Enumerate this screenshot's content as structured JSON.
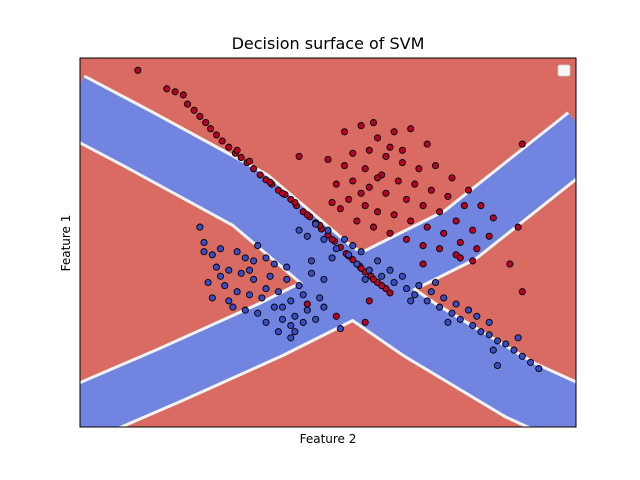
{
  "chart_data": {
    "type": "scatter",
    "title": "Decision surface of SVM",
    "xlabel": "Feature 2",
    "ylabel": "Feature 1",
    "xlim": [
      -3.0,
      3.0
    ],
    "ylim": [
      -3.0,
      3.0
    ],
    "xticks": [],
    "yticks": [],
    "grid": false,
    "legend": {
      "location": "top-right",
      "entries": []
    },
    "decision_regions": [
      {
        "class": 0,
        "color": "#7084e0",
        "shape": "X-shaped band along both diagonals"
      },
      {
        "class": 1,
        "color": "#d96b63",
        "shape": "remaining background (top, bottom, left, right wedges)"
      }
    ],
    "series": [
      {
        "class": 1,
        "color": "#b40426",
        "points": [
          [
            -2.3,
            2.8
          ],
          [
            -1.95,
            2.5
          ],
          [
            -1.85,
            2.45
          ],
          [
            -1.75,
            2.4
          ],
          [
            -1.7,
            2.25
          ],
          [
            -1.62,
            2.15
          ],
          [
            -1.55,
            2.05
          ],
          [
            -1.48,
            1.95
          ],
          [
            -1.42,
            1.85
          ],
          [
            -1.35,
            1.75
          ],
          [
            -1.28,
            1.65
          ],
          [
            -1.2,
            1.55
          ],
          [
            -1.12,
            1.45
          ],
          [
            -1.05,
            1.38
          ],
          [
            -0.98,
            1.3
          ],
          [
            -0.9,
            1.2
          ],
          [
            -0.82,
            1.1
          ],
          [
            -0.75,
            1.02
          ],
          [
            -0.68,
            0.95
          ],
          [
            -0.6,
            0.85
          ],
          [
            -0.52,
            0.78
          ],
          [
            -0.45,
            0.7
          ],
          [
            -0.38,
            0.6
          ],
          [
            -0.3,
            0.5
          ],
          [
            -0.22,
            0.42
          ],
          [
            -0.15,
            0.32
          ],
          [
            -0.08,
            0.22
          ],
          [
            0.0,
            0.12
          ],
          [
            0.08,
            0.02
          ],
          [
            0.15,
            -0.08
          ],
          [
            0.22,
            -0.18
          ],
          [
            0.3,
            -0.28
          ],
          [
            0.38,
            -0.38
          ],
          [
            0.45,
            -0.48
          ],
          [
            0.52,
            -0.55
          ],
          [
            0.6,
            -0.65
          ],
          [
            0.7,
            -0.75
          ],
          [
            -1.1,
            1.5
          ],
          [
            -0.95,
            1.32
          ],
          [
            -0.7,
            0.98
          ],
          [
            -0.55,
            0.8
          ],
          [
            -0.4,
            0.65
          ],
          [
            -0.25,
            0.45
          ],
          [
            -0.1,
            0.28
          ],
          [
            0.05,
            0.05
          ],
          [
            0.25,
            -0.22
          ],
          [
            0.4,
            -0.42
          ],
          [
            0.55,
            -0.6
          ],
          [
            0.65,
            -0.7
          ],
          [
            0.75,
            -0.82
          ],
          [
            0.2,
            1.8
          ],
          [
            0.4,
            1.9
          ],
          [
            0.6,
            1.7
          ],
          [
            0.8,
            1.8
          ],
          [
            1.0,
            1.85
          ],
          [
            0.3,
            1.45
          ],
          [
            0.5,
            1.5
          ],
          [
            0.7,
            1.4
          ],
          [
            0.9,
            1.3
          ],
          [
            1.1,
            1.2
          ],
          [
            -0.35,
            1.4
          ],
          [
            0.0,
            1.35
          ],
          [
            0.2,
            1.25
          ],
          [
            0.45,
            1.2
          ],
          [
            0.65,
            1.1
          ],
          [
            0.85,
            1.0
          ],
          [
            1.05,
            0.95
          ],
          [
            1.25,
            0.85
          ],
          [
            1.45,
            0.75
          ],
          [
            1.65,
            0.6
          ],
          [
            0.1,
            0.95
          ],
          [
            0.3,
            1.0
          ],
          [
            0.5,
            0.9
          ],
          [
            0.7,
            0.8
          ],
          [
            0.95,
            0.7
          ],
          [
            1.15,
            0.6
          ],
          [
            1.35,
            0.5
          ],
          [
            1.55,
            0.35
          ],
          [
            1.75,
            0.2
          ],
          [
            1.95,
            0.1
          ],
          [
            0.05,
            0.65
          ],
          [
            0.25,
            0.7
          ],
          [
            0.45,
            0.6
          ],
          [
            0.6,
            0.5
          ],
          [
            0.8,
            0.45
          ],
          [
            1.0,
            0.35
          ],
          [
            1.2,
            0.25
          ],
          [
            1.4,
            0.15
          ],
          [
            1.6,
            0.0
          ],
          [
            1.8,
            -0.1
          ],
          [
            0.35,
            0.35
          ],
          [
            0.55,
            0.25
          ],
          [
            0.75,
            0.15
          ],
          [
            0.95,
            0.05
          ],
          [
            1.15,
            -0.05
          ],
          [
            1.35,
            -0.1
          ],
          [
            1.55,
            -0.2
          ],
          [
            1.75,
            -0.3
          ],
          [
            1.5,
            1.05
          ],
          [
            1.7,
            0.85
          ],
          [
            1.85,
            0.6
          ],
          [
            2.0,
            0.4
          ],
          [
            1.3,
            1.25
          ],
          [
            0.75,
            1.55
          ],
          [
            0.55,
            1.95
          ],
          [
            1.2,
            1.6
          ],
          [
            0.9,
            1.5
          ],
          [
            0.4,
            0.8
          ],
          [
            0.6,
            1.05
          ],
          [
            0.15,
            0.55
          ],
          [
            2.35,
            1.6
          ],
          [
            2.3,
            0.25
          ],
          [
            1.6,
            -0.25
          ],
          [
            1.15,
            -0.35
          ],
          [
            0.5,
            -0.95
          ],
          [
            -0.25,
            -1.0
          ],
          [
            0.1,
            -1.2
          ],
          [
            0.45,
            -1.3
          ],
          [
            2.35,
            -0.8
          ],
          [
            2.2,
            -0.35
          ]
        ]
      },
      {
        "class": 0,
        "color": "#3b4cc0",
        "points": [
          [
            -1.5,
            0.0
          ],
          [
            -1.3,
            -0.1
          ],
          [
            -1.1,
            -0.15
          ],
          [
            -0.9,
            -0.3
          ],
          [
            -0.75,
            -0.25
          ],
          [
            -1.35,
            -0.4
          ],
          [
            -1.2,
            -0.45
          ],
          [
            -1.05,
            -0.5
          ],
          [
            -0.9,
            -0.6
          ],
          [
            -0.7,
            -0.55
          ],
          [
            -1.25,
            -0.7
          ],
          [
            -1.1,
            -0.8
          ],
          [
            -0.95,
            -0.85
          ],
          [
            -0.8,
            -0.9
          ],
          [
            -0.6,
            -0.8
          ],
          [
            -1.15,
            -1.05
          ],
          [
            -1.0,
            -1.1
          ],
          [
            -0.85,
            -1.15
          ],
          [
            -0.65,
            -1.05
          ],
          [
            -0.45,
            -0.95
          ],
          [
            -0.75,
            -1.3
          ],
          [
            -0.55,
            -1.25
          ],
          [
            -0.4,
            -1.2
          ],
          [
            -0.25,
            -1.1
          ],
          [
            -0.1,
            -0.9
          ],
          [
            -0.6,
            -1.45
          ],
          [
            -0.4,
            -1.45
          ],
          [
            -0.3,
            -1.3
          ],
          [
            -0.15,
            -1.25
          ],
          [
            -0.05,
            -1.05
          ],
          [
            -1.4,
            -0.2
          ],
          [
            -1.45,
            -0.65
          ],
          [
            -0.5,
            -0.6
          ],
          [
            -0.35,
            -0.7
          ],
          [
            -0.2,
            -0.5
          ],
          [
            -0.85,
            -0.05
          ],
          [
            -0.65,
            -0.35
          ],
          [
            -0.5,
            -0.4
          ],
          [
            -1.0,
            -0.25
          ],
          [
            -1.4,
            -0.9
          ],
          [
            -1.5,
            -0.15
          ],
          [
            -0.3,
            -0.85
          ],
          [
            -0.2,
            -0.3
          ],
          [
            -0.05,
            -0.6
          ],
          [
            -1.2,
            -0.95
          ],
          [
            -0.75,
            -0.75
          ],
          [
            -0.55,
            -1.05
          ],
          [
            -0.95,
            -0.45
          ],
          [
            -1.3,
            -0.55
          ],
          [
            -0.45,
            -1.35
          ],
          [
            -0.25,
            0.1
          ],
          [
            -0.05,
            0.05
          ],
          [
            0.1,
            -0.1
          ],
          [
            0.25,
            -0.2
          ],
          [
            0.35,
            -0.35
          ],
          [
            0.5,
            -0.45
          ],
          [
            0.65,
            -0.55
          ],
          [
            0.8,
            -0.65
          ],
          [
            0.95,
            -0.75
          ],
          [
            1.05,
            -0.85
          ],
          [
            1.2,
            -0.95
          ],
          [
            1.35,
            -1.05
          ],
          [
            1.5,
            -1.15
          ],
          [
            1.6,
            -1.25
          ],
          [
            1.75,
            -1.35
          ],
          [
            1.85,
            -1.45
          ],
          [
            1.95,
            -1.5
          ],
          [
            2.05,
            -1.6
          ],
          [
            2.15,
            -1.65
          ],
          [
            2.25,
            -1.75
          ],
          [
            2.35,
            -1.85
          ],
          [
            2.45,
            -1.95
          ],
          [
            2.55,
            -2.05
          ],
          [
            0.2,
            0.05
          ],
          [
            0.4,
            -0.15
          ],
          [
            0.6,
            -0.3
          ],
          [
            0.75,
            -0.45
          ],
          [
            0.9,
            -0.55
          ],
          [
            1.1,
            -0.7
          ],
          [
            1.25,
            -0.8
          ],
          [
            1.4,
            -0.9
          ],
          [
            1.55,
            -1.0
          ],
          [
            1.7,
            -1.1
          ],
          [
            1.8,
            -1.2
          ],
          [
            1.95,
            -1.3
          ],
          [
            0.0,
            0.2
          ],
          [
            -0.15,
            0.3
          ],
          [
            0.3,
            -0.05
          ],
          [
            0.05,
            -0.25
          ],
          [
            0.45,
            -0.6
          ],
          [
            1.0,
            -0.95
          ],
          [
            1.45,
            -1.3
          ],
          [
            2.0,
            -1.75
          ],
          [
            2.3,
            -1.55
          ],
          [
            1.3,
            -0.65
          ],
          [
            -1.55,
            0.25
          ],
          [
            -0.45,
            -1.55
          ],
          [
            0.15,
            -1.4
          ],
          [
            -0.35,
            0.2
          ],
          [
            2.05,
            -2.0
          ]
        ]
      }
    ]
  }
}
